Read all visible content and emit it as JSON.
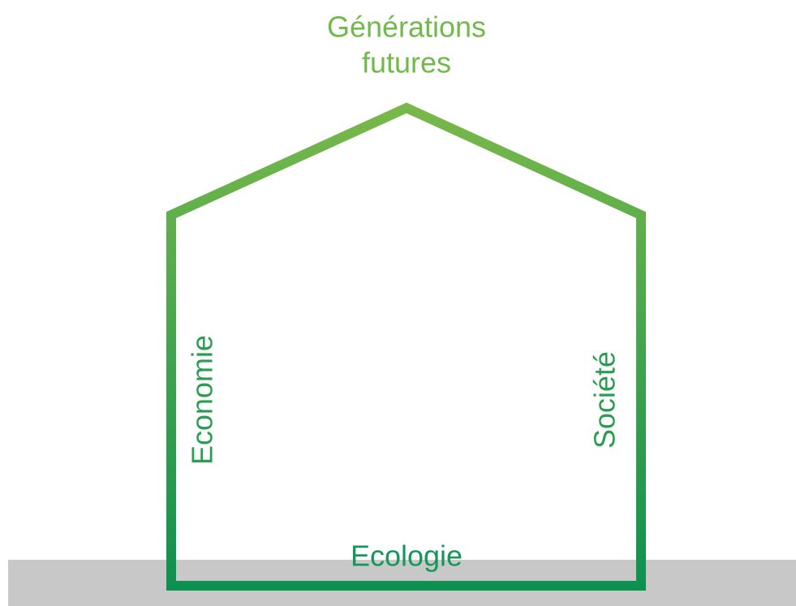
{
  "roof": {
    "line1": "Générations",
    "line2": "futures"
  },
  "walls": {
    "left": "Economie",
    "right": "Société"
  },
  "floor": "Ecologie"
}
